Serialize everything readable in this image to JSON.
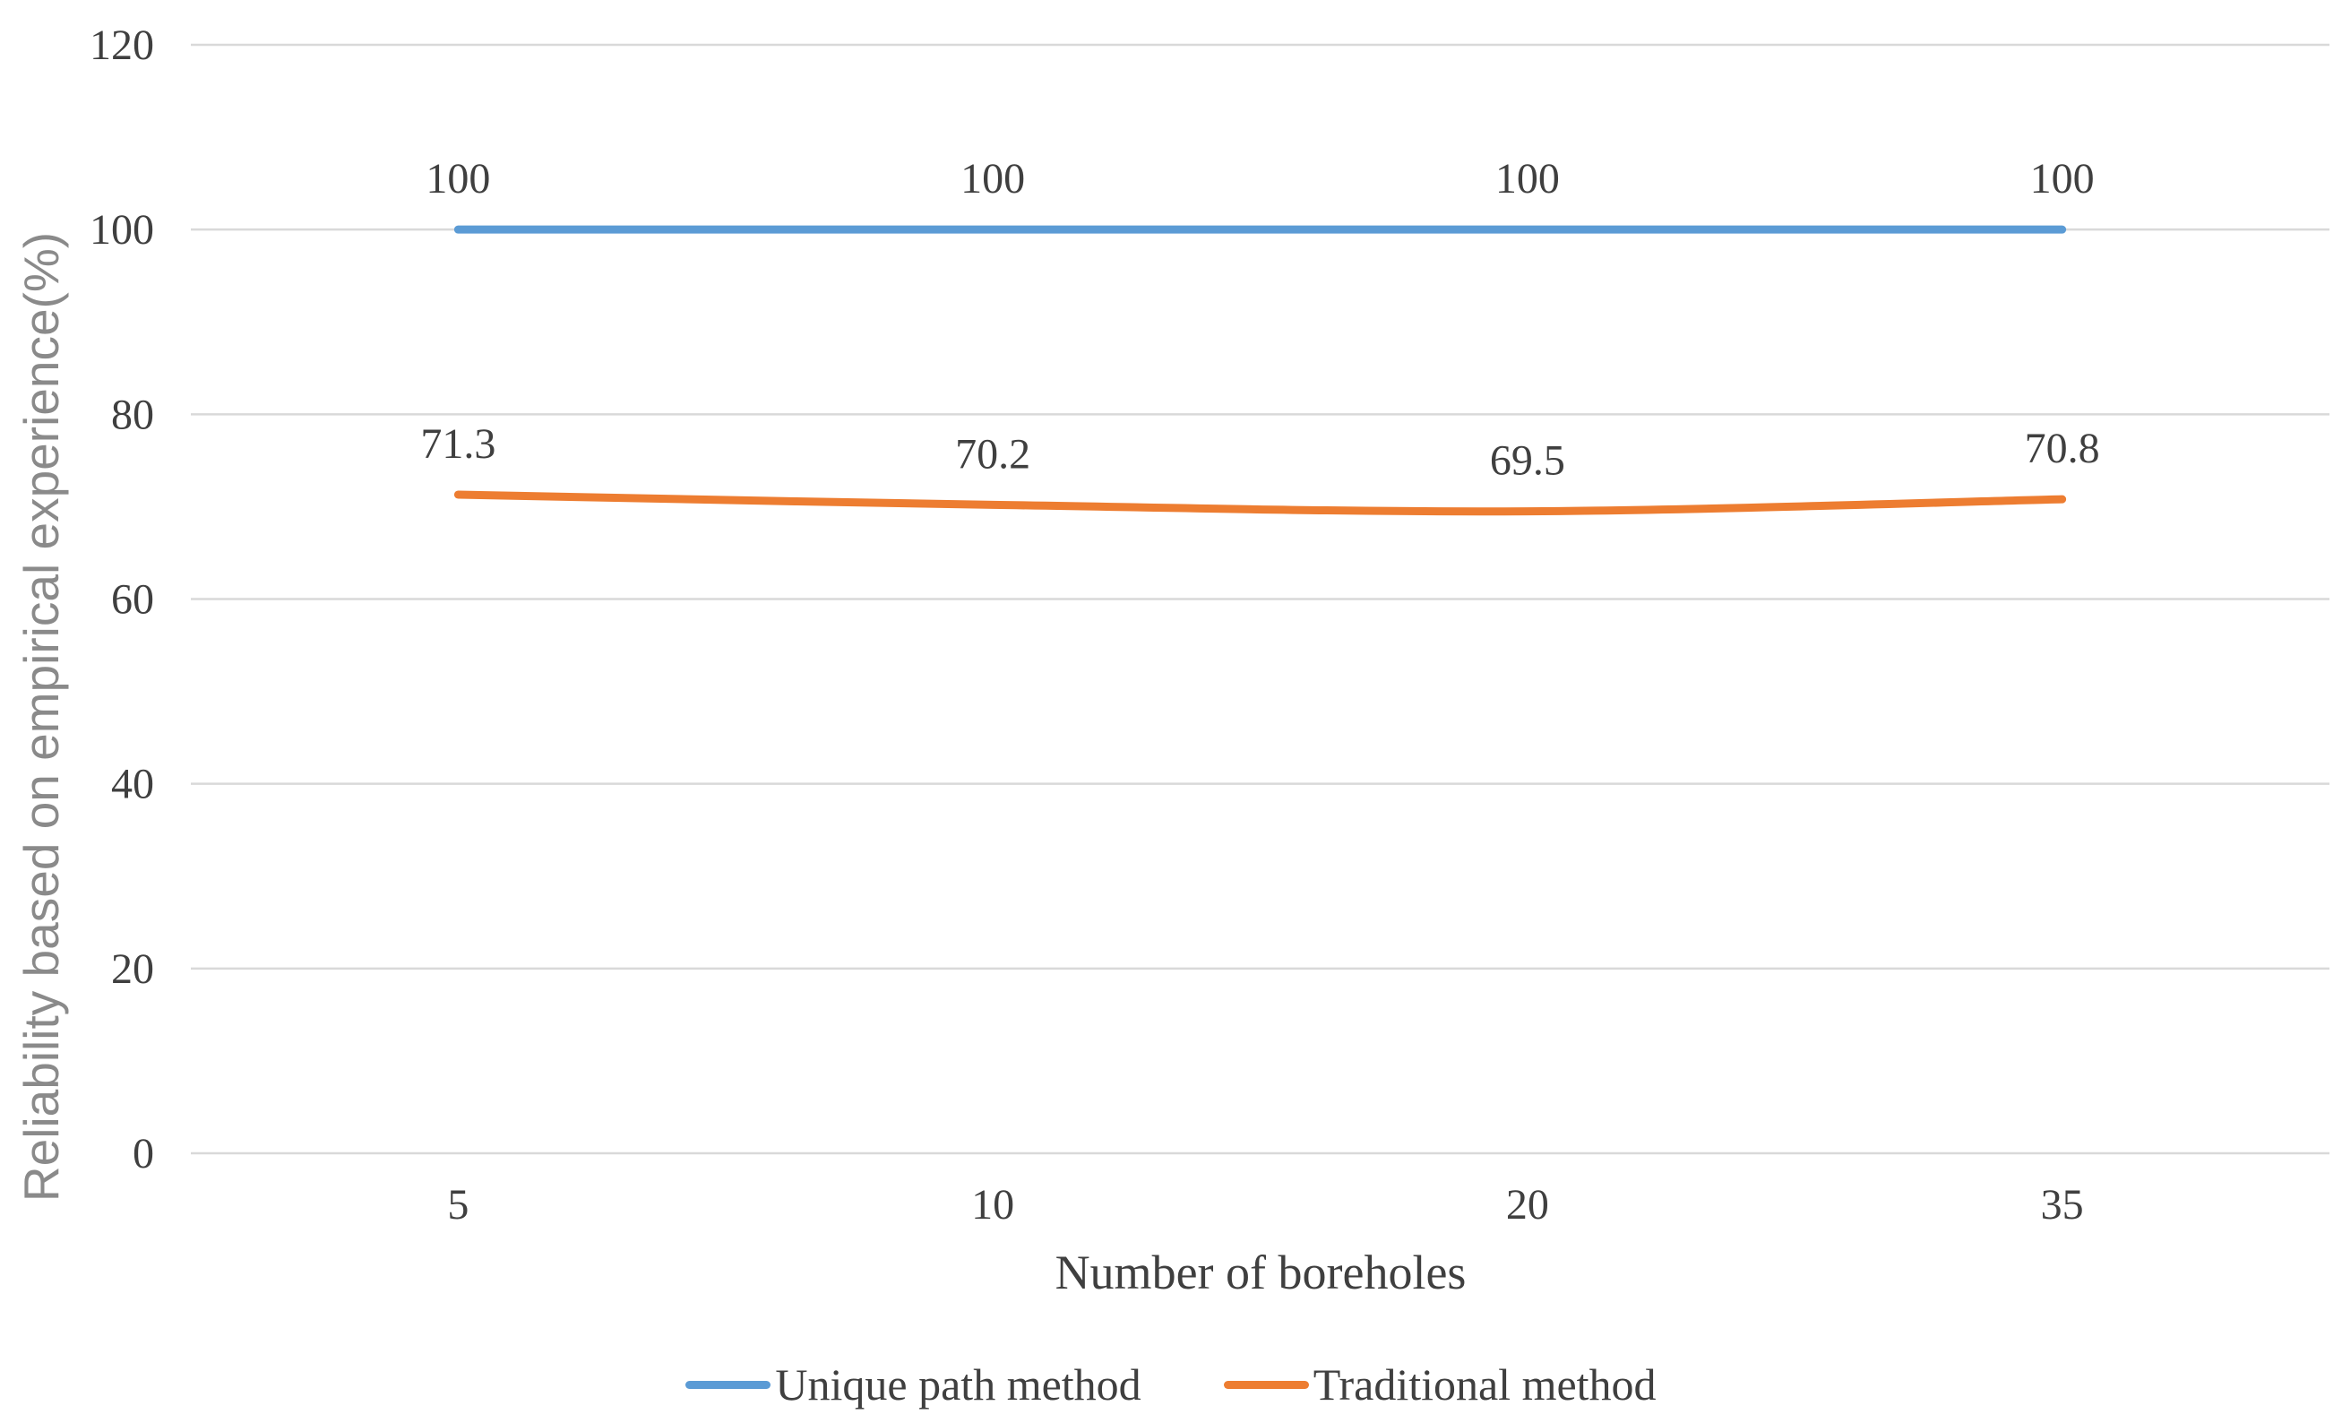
{
  "chart_data": {
    "type": "line",
    "title": "",
    "categories": [
      "5",
      "10",
      "20",
      "35"
    ],
    "series": [
      {
        "name": "Unique path method",
        "values": [
          100,
          100,
          100,
          100
        ],
        "labels": [
          "100",
          "100",
          "100",
          "100"
        ],
        "color": "#5B9BD5"
      },
      {
        "name": "Traditional method",
        "values": [
          71.3,
          70.2,
          69.5,
          70.8
        ],
        "labels": [
          "71.3",
          "70.2",
          "69.5",
          "70.8"
        ],
        "color": "#ED7D31"
      }
    ],
    "xlabel": "Number of boreholes",
    "ylabel": "Reliability based on empirical experience(%)",
    "ylim": [
      0,
      120
    ],
    "yticks": [
      "0",
      "20",
      "40",
      "60",
      "80",
      "100",
      "120"
    ],
    "grid": true,
    "gridline_color": "#D9D9D9",
    "tick_text_color": "#3F3F3F",
    "axis_title_color": "#8A8A8A",
    "legend_position": "bottom",
    "smooth_lines": true,
    "data_labels_shown": true
  }
}
